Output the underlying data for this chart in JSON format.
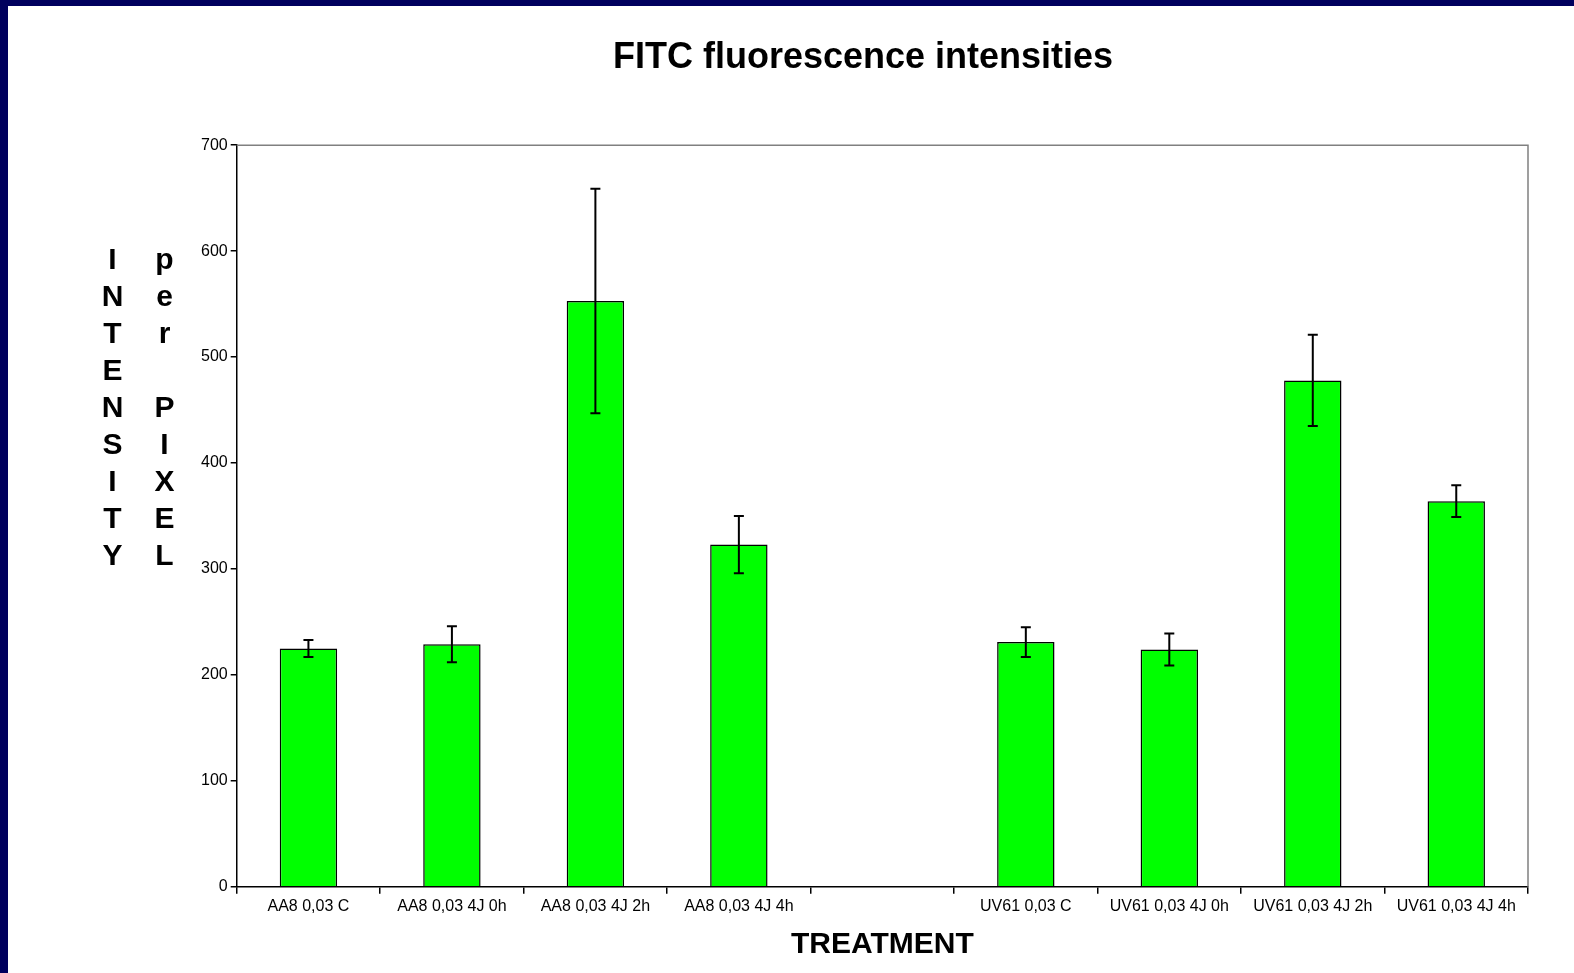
{
  "chart_data": {
    "type": "bar",
    "title": "FITC fluorescence intensities",
    "xlabel": "TREATMENT",
    "ylabel": "INTENSITY per PIXEL",
    "categories": [
      "AA8 0,03 C",
      "AA8 0,03 4J 0h",
      "AA8 0,03 4J 2h",
      "AA8 0,03 4J 4h",
      null,
      "UV61 0,03 C",
      "UV61 0,03 4J 0h",
      "UV61 0,03 4J 2h",
      "UV61 0,03 4J 4h"
    ],
    "values": [
      225,
      229,
      553,
      323,
      null,
      231,
      224,
      478,
      364
    ],
    "errors": [
      8,
      17,
      106,
      27,
      null,
      14,
      15,
      43,
      15
    ],
    "color": "#00ff00",
    "ylim": [
      0,
      700
    ],
    "yticks": [
      0,
      100,
      200,
      300,
      400,
      500,
      600,
      700
    ],
    "grid": false,
    "legend": false
  }
}
